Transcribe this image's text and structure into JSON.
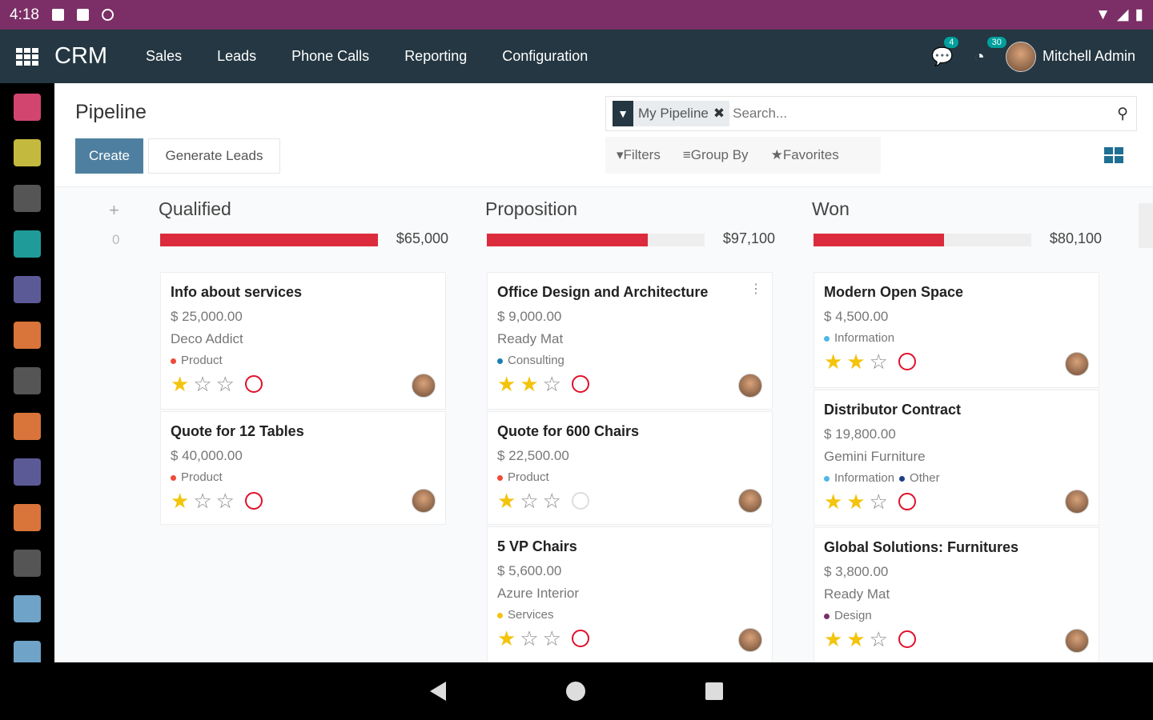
{
  "status_bar": {
    "time": "4:18"
  },
  "navbar": {
    "app": "CRM",
    "menu": [
      "Sales",
      "Leads",
      "Phone Calls",
      "Reporting",
      "Configuration"
    ],
    "messages_count": "4",
    "activities_count": "30",
    "user": "Mitchell Admin"
  },
  "sidebar_colors": [
    "#d2456f",
    "#c4b93f",
    "#555555",
    "#1f9b9a",
    "#5c5a96",
    "#d9743a",
    "#555555",
    "#d9743a",
    "#5c5a96",
    "#d9743a",
    "#555555",
    "#6fa3c8",
    "#6fa3c8"
  ],
  "control": {
    "title": "Pipeline",
    "create": "Create",
    "generate": "Generate Leads",
    "facet": "My Pipeline",
    "search_placeholder": "Search...",
    "filters": "Filters",
    "group_by": "Group By",
    "favorites": "Favorites"
  },
  "folded_count": "0",
  "columns": [
    {
      "title": "Qualified",
      "total": "$65,000",
      "progress": 100,
      "cards": [
        {
          "name": "Info about services",
          "amount": "$ 25,000.00",
          "customer": "Deco Addict",
          "tags": [
            {
              "label": "Product",
              "color": "#f04a3a"
            }
          ],
          "stars": 1,
          "activity": "overdue"
        },
        {
          "name": "Quote for 12 Tables",
          "amount": "$ 40,000.00",
          "customer": "",
          "tags": [
            {
              "label": "Product",
              "color": "#f04a3a"
            }
          ],
          "stars": 1,
          "activity": "overdue"
        }
      ]
    },
    {
      "title": "Proposition",
      "total": "$97,100",
      "progress": 74,
      "cards": [
        {
          "name": "Office Design and Architecture",
          "amount": "$ 9,000.00",
          "customer": "Ready Mat",
          "tags": [
            {
              "label": "Consulting",
              "color": "#1a7fb5"
            }
          ],
          "stars": 2,
          "activity": "overdue"
        },
        {
          "name": "Quote for 600 Chairs",
          "amount": "$ 22,500.00",
          "customer": "",
          "tags": [
            {
              "label": "Product",
              "color": "#f04a3a"
            }
          ],
          "stars": 1,
          "activity": "none"
        },
        {
          "name": "5 VP Chairs",
          "amount": "$ 5,600.00",
          "customer": "Azure Interior",
          "tags": [
            {
              "label": "Services",
              "color": "#f3c40c"
            }
          ],
          "stars": 1,
          "activity": "overdue"
        }
      ]
    },
    {
      "title": "Won",
      "total": "$80,100",
      "progress": 60,
      "cards": [
        {
          "name": "Modern Open Space",
          "amount": "$ 4,500.00",
          "customer": "",
          "tags": [
            {
              "label": "Information",
              "color": "#4fb7e8"
            }
          ],
          "stars": 2,
          "activity": "overdue"
        },
        {
          "name": "Distributor Contract",
          "amount": "$ 19,800.00",
          "customer": "Gemini Furniture",
          "tags": [
            {
              "label": "Information",
              "color": "#4fb7e8"
            },
            {
              "label": "Other",
              "color": "#1f3f8a"
            }
          ],
          "stars": 2,
          "activity": "overdue"
        },
        {
          "name": "Global Solutions: Furnitures",
          "amount": "$ 3,800.00",
          "customer": "Ready Mat",
          "tags": [
            {
              "label": "Design",
              "color": "#7b2f66"
            }
          ],
          "stars": 2,
          "activity": "overdue"
        }
      ]
    }
  ]
}
